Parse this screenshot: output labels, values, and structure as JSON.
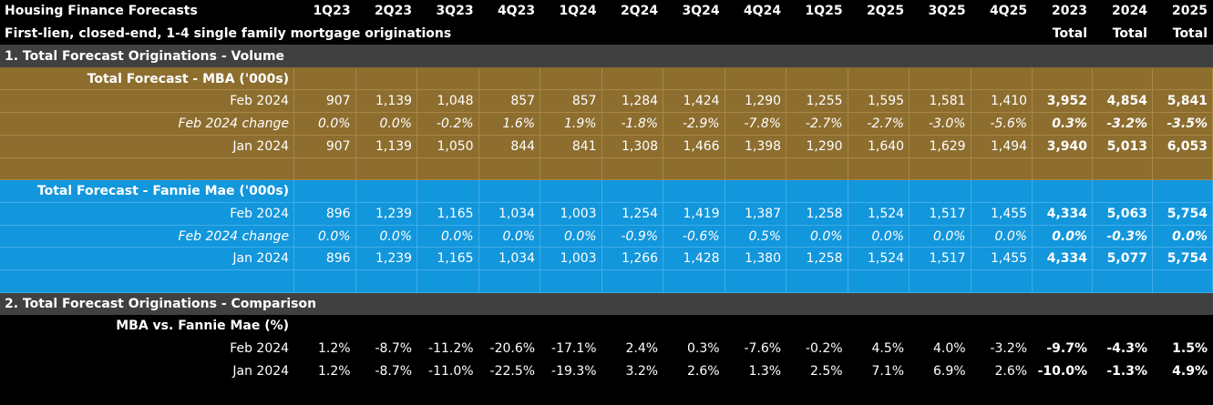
{
  "header": {
    "title": "Housing Finance Forecasts",
    "subtitle": "First-lien, closed-end, 1-4 single family mortgage originations",
    "quarters": [
      "1Q23",
      "2Q23",
      "3Q23",
      "4Q23",
      "1Q24",
      "2Q24",
      "3Q24",
      "4Q24",
      "1Q25",
      "2Q25",
      "3Q25",
      "4Q25"
    ],
    "years": [
      "2023",
      "2024",
      "2025"
    ],
    "total_label": "Total"
  },
  "section1": {
    "title": "1. Total Forecast Originations - Volume",
    "mba": {
      "title": "Total Forecast - MBA ('000s)",
      "rows": [
        {
          "label": "Feb 2024",
          "style": "normal",
          "q": [
            "907",
            "1,139",
            "1,048",
            "857",
            "857",
            "1,284",
            "1,424",
            "1,290",
            "1,255",
            "1,595",
            "1,581",
            "1,410"
          ],
          "t": [
            "3,952",
            "4,854",
            "5,841"
          ]
        },
        {
          "label": "Feb 2024 change",
          "style": "italic",
          "q": [
            "0.0%",
            "0.0%",
            "-0.2%",
            "1.6%",
            "1.9%",
            "-1.8%",
            "-2.9%",
            "-7.8%",
            "-2.7%",
            "-2.7%",
            "-3.0%",
            "-5.6%"
          ],
          "t": [
            "0.3%",
            "-3.2%",
            "-3.5%"
          ]
        },
        {
          "label": "Jan 2024",
          "style": "normal",
          "q": [
            "907",
            "1,139",
            "1,050",
            "844",
            "841",
            "1,308",
            "1,466",
            "1,398",
            "1,290",
            "1,640",
            "1,629",
            "1,494"
          ],
          "t": [
            "3,940",
            "5,013",
            "6,053"
          ]
        }
      ]
    },
    "fannie": {
      "title": "Total Forecast - Fannie Mae ('000s)",
      "rows": [
        {
          "label": "Feb 2024",
          "style": "normal",
          "q": [
            "896",
            "1,239",
            "1,165",
            "1,034",
            "1,003",
            "1,254",
            "1,419",
            "1,387",
            "1,258",
            "1,524",
            "1,517",
            "1,455"
          ],
          "t": [
            "4,334",
            "5,063",
            "5,754"
          ]
        },
        {
          "label": "Feb 2024 change",
          "style": "italic",
          "q": [
            "0.0%",
            "0.0%",
            "0.0%",
            "0.0%",
            "0.0%",
            "-0.9%",
            "-0.6%",
            "0.5%",
            "0.0%",
            "0.0%",
            "0.0%",
            "0.0%"
          ],
          "t": [
            "0.0%",
            "-0.3%",
            "0.0%"
          ]
        },
        {
          "label": "Jan 2024",
          "style": "normal",
          "q": [
            "896",
            "1,239",
            "1,165",
            "1,034",
            "1,003",
            "1,266",
            "1,428",
            "1,380",
            "1,258",
            "1,524",
            "1,517",
            "1,455"
          ],
          "t": [
            "4,334",
            "5,077",
            "5,754"
          ]
        }
      ]
    }
  },
  "section2": {
    "title": "2. Total Forecast Originations - Comparison",
    "comparison": {
      "title": "MBA vs. Fannie Mae (%)",
      "rows": [
        {
          "label": "Feb 2024",
          "style": "normal",
          "q": [
            "1.2%",
            "-8.7%",
            "-11.2%",
            "-20.6%",
            "-17.1%",
            "2.4%",
            "0.3%",
            "-7.6%",
            "-0.2%",
            "4.5%",
            "4.0%",
            "-3.2%"
          ],
          "t": [
            "-9.7%",
            "-4.3%",
            "1.5%"
          ]
        },
        {
          "label": "Jan 2024",
          "style": "normal",
          "q": [
            "1.2%",
            "-8.7%",
            "-11.0%",
            "-22.5%",
            "-19.3%",
            "3.2%",
            "2.6%",
            "1.3%",
            "2.5%",
            "7.1%",
            "6.9%",
            "2.6%"
          ],
          "t": [
            "-10.0%",
            "-1.3%",
            "4.9%"
          ]
        }
      ]
    }
  },
  "colors": {
    "mba_fill": "#8d6e2f",
    "fannie_fill": "#1296dc",
    "section_fill": "#404040",
    "background": "#000000"
  }
}
